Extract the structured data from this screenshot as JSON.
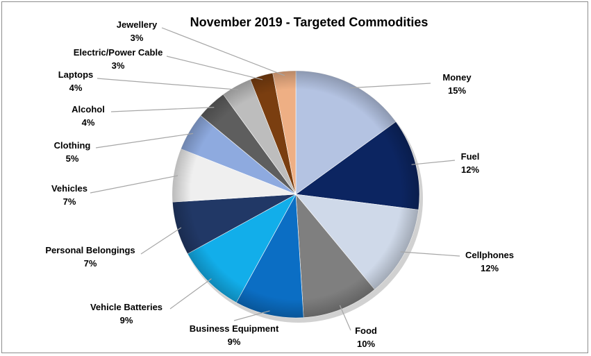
{
  "chart_data": {
    "type": "pie",
    "title": "November 2019 - Targeted Commodities",
    "start_angle_deg": 0,
    "direction": "clockwise",
    "style": "3d-bevel",
    "slices": [
      {
        "label": "Money",
        "value": 15,
        "pct": "15%",
        "color": "#b4c3e2"
      },
      {
        "label": "Fuel",
        "value": 12,
        "pct": "12%",
        "color": "#0c2561"
      },
      {
        "label": "Cellphones",
        "value": 12,
        "pct": "12%",
        "color": "#cfd9e9"
      },
      {
        "label": "Food",
        "value": 10,
        "pct": "10%",
        "color": "#7f7f7f"
      },
      {
        "label": "Business Equipment",
        "value": 9,
        "pct": "9%",
        "color": "#0b6ec4"
      },
      {
        "label": "Vehicle Batteries",
        "value": 9,
        "pct": "9%",
        "color": "#12aeea"
      },
      {
        "label": "Personal Belongings",
        "value": 7,
        "pct": "7%",
        "color": "#213866"
      },
      {
        "label": "Vehicles",
        "value": 7,
        "pct": "7%",
        "color": "#efefef"
      },
      {
        "label": "Clothing",
        "value": 5,
        "pct": "5%",
        "color": "#8eaadf"
      },
      {
        "label": "Alcohol",
        "value": 4,
        "pct": "4%",
        "color": "#5e5e5e"
      },
      {
        "label": "Laptops",
        "value": 4,
        "pct": "4%",
        "color": "#bdbdbd"
      },
      {
        "label": "Electric/Power Cable",
        "value": 3,
        "pct": "3%",
        "color": "#7a3e10"
      },
      {
        "label": "Jewellery",
        "value": 3,
        "pct": "3%",
        "color": "#eeaf84"
      }
    ]
  }
}
